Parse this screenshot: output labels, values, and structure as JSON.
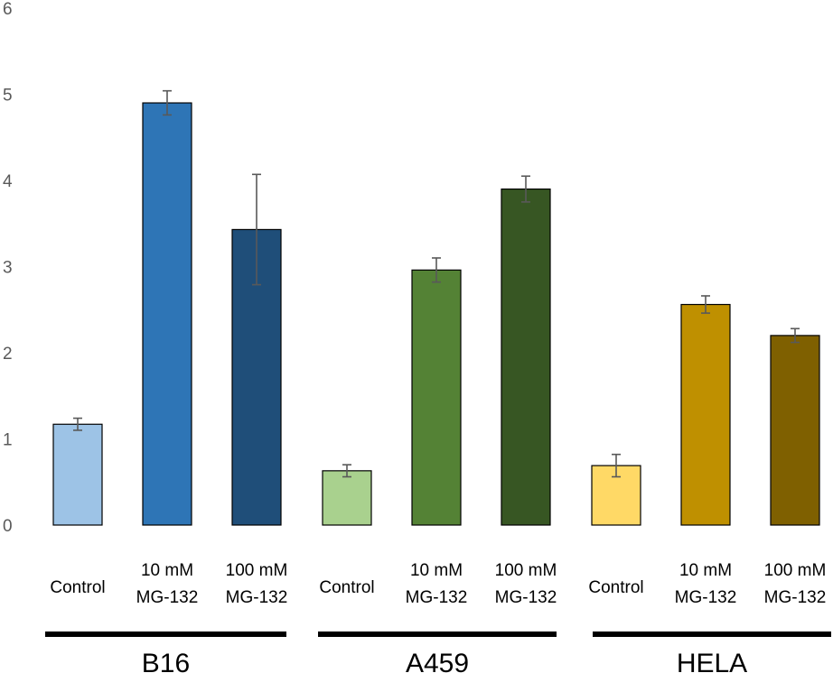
{
  "chart_data": {
    "type": "bar",
    "title": "",
    "xlabel": "",
    "ylabel": "",
    "ylim": [
      0,
      6
    ],
    "yticks": [
      "0",
      "1",
      "2",
      "3",
      "4",
      "5",
      "6"
    ],
    "grid": false,
    "groups": [
      {
        "name": "B16",
        "bars": [
          {
            "label": [
              "Control"
            ],
            "value": 1.17,
            "error": 0.07,
            "color": "#9DC3E6"
          },
          {
            "label": [
              "10 mM",
              "MG-132"
            ],
            "value": 4.9,
            "error": 0.14,
            "color": "#2E75B6"
          },
          {
            "label": [
              "100 mM",
              "MG-132"
            ],
            "value": 3.43,
            "error": 0.64,
            "color": "#1F4E79"
          }
        ]
      },
      {
        "name": "A459",
        "bars": [
          {
            "label": [
              "Control"
            ],
            "value": 0.63,
            "error": 0.07,
            "color": "#A9D18E"
          },
          {
            "label": [
              "10 mM",
              "MG-132"
            ],
            "value": 2.96,
            "error": 0.14,
            "color": "#548235"
          },
          {
            "label": [
              "100 mM",
              "MG-132"
            ],
            "value": 3.9,
            "error": 0.15,
            "color": "#375623"
          }
        ]
      },
      {
        "name": "HELA",
        "bars": [
          {
            "label": [
              "Control"
            ],
            "value": 0.69,
            "error": 0.13,
            "color": "#FFD966"
          },
          {
            "label": [
              "10 mM",
              "MG-132"
            ],
            "value": 2.56,
            "error": 0.1,
            "color": "#BF9000"
          },
          {
            "label": [
              "100 mM",
              "MG-132"
            ],
            "value": 2.2,
            "error": 0.08,
            "color": "#7F6000"
          }
        ]
      }
    ]
  }
}
